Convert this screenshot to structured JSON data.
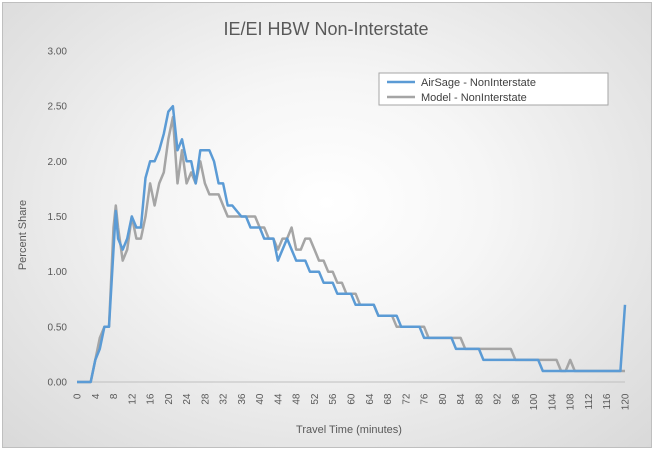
{
  "chart_data": {
    "type": "line",
    "title": "IE/EI HBW Non-Interstate",
    "xlabel": "Travel Time (minutes)",
    "ylabel": "Percent Share",
    "xlim": [
      0,
      120
    ],
    "ylim": [
      0,
      3.0
    ],
    "x_ticks": [
      "0",
      "4",
      "8",
      "12",
      "16",
      "20",
      "24",
      "28",
      "32",
      "36",
      "40",
      "44",
      "48",
      "52",
      "56",
      "60",
      "64",
      "68",
      "72",
      "76",
      "80",
      "84",
      "88",
      "92",
      "96",
      "100",
      "104",
      "108",
      "112",
      "116",
      "120"
    ],
    "y_ticks": [
      "0.00",
      "0.50",
      "1.00",
      "1.50",
      "2.00",
      "2.50",
      "3.00"
    ],
    "grid": false,
    "legend_position": "top-right",
    "series": [
      {
        "name": "AirSage - NonInterstate",
        "color": "#5b9bd5",
        "points": [
          [
            0,
            0
          ],
          [
            1,
            0
          ],
          [
            2,
            0
          ],
          [
            3,
            0
          ],
          [
            4,
            0.2
          ],
          [
            5,
            0.3
          ],
          [
            6,
            0.5
          ],
          [
            7,
            0.5
          ],
          [
            8,
            1.2
          ],
          [
            8.5,
            1.55
          ],
          [
            9,
            1.3
          ],
          [
            10,
            1.2
          ],
          [
            11,
            1.3
          ],
          [
            12,
            1.5
          ],
          [
            13,
            1.4
          ],
          [
            14,
            1.4
          ],
          [
            15,
            1.85
          ],
          [
            16,
            2.0
          ],
          [
            17,
            2.0
          ],
          [
            18,
            2.1
          ],
          [
            19,
            2.25
          ],
          [
            20,
            2.45
          ],
          [
            21,
            2.5
          ],
          [
            22,
            2.1
          ],
          [
            23,
            2.2
          ],
          [
            24,
            2.0
          ],
          [
            25,
            2.0
          ],
          [
            26,
            1.8
          ],
          [
            27,
            2.1
          ],
          [
            28,
            2.1
          ],
          [
            29,
            2.1
          ],
          [
            30,
            2.0
          ],
          [
            31,
            1.8
          ],
          [
            32,
            1.8
          ],
          [
            33,
            1.6
          ],
          [
            34,
            1.6
          ],
          [
            35,
            1.55
          ],
          [
            36,
            1.5
          ],
          [
            37,
            1.5
          ],
          [
            38,
            1.4
          ],
          [
            39,
            1.4
          ],
          [
            40,
            1.4
          ],
          [
            41,
            1.3
          ],
          [
            42,
            1.3
          ],
          [
            43,
            1.3
          ],
          [
            44,
            1.1
          ],
          [
            45,
            1.2
          ],
          [
            46,
            1.3
          ],
          [
            47,
            1.2
          ],
          [
            48,
            1.1
          ],
          [
            49,
            1.1
          ],
          [
            50,
            1.1
          ],
          [
            51,
            1.0
          ],
          [
            52,
            1.0
          ],
          [
            53,
            1.0
          ],
          [
            54,
            0.9
          ],
          [
            55,
            0.9
          ],
          [
            56,
            0.9
          ],
          [
            57,
            0.8
          ],
          [
            58,
            0.8
          ],
          [
            59,
            0.8
          ],
          [
            60,
            0.8
          ],
          [
            61,
            0.7
          ],
          [
            62,
            0.7
          ],
          [
            63,
            0.7
          ],
          [
            64,
            0.7
          ],
          [
            65,
            0.7
          ],
          [
            66,
            0.6
          ],
          [
            67,
            0.6
          ],
          [
            68,
            0.6
          ],
          [
            69,
            0.6
          ],
          [
            70,
            0.6
          ],
          [
            71,
            0.5
          ],
          [
            72,
            0.5
          ],
          [
            73,
            0.5
          ],
          [
            74,
            0.5
          ],
          [
            75,
            0.5
          ],
          [
            76,
            0.4
          ],
          [
            77,
            0.4
          ],
          [
            78,
            0.4
          ],
          [
            79,
            0.4
          ],
          [
            80,
            0.4
          ],
          [
            81,
            0.4
          ],
          [
            82,
            0.4
          ],
          [
            83,
            0.3
          ],
          [
            84,
            0.3
          ],
          [
            85,
            0.3
          ],
          [
            86,
            0.3
          ],
          [
            87,
            0.3
          ],
          [
            88,
            0.3
          ],
          [
            89,
            0.2
          ],
          [
            90,
            0.2
          ],
          [
            91,
            0.2
          ],
          [
            92,
            0.2
          ],
          [
            93,
            0.2
          ],
          [
            94,
            0.2
          ],
          [
            95,
            0.2
          ],
          [
            96,
            0.2
          ],
          [
            97,
            0.2
          ],
          [
            98,
            0.2
          ],
          [
            99,
            0.2
          ],
          [
            100,
            0.2
          ],
          [
            101,
            0.2
          ],
          [
            102,
            0.1
          ],
          [
            103,
            0.1
          ],
          [
            104,
            0.1
          ],
          [
            105,
            0.1
          ],
          [
            106,
            0.1
          ],
          [
            107,
            0.1
          ],
          [
            108,
            0.1
          ],
          [
            109,
            0.1
          ],
          [
            110,
            0.1
          ],
          [
            111,
            0.1
          ],
          [
            112,
            0.1
          ],
          [
            113,
            0.1
          ],
          [
            114,
            0.1
          ],
          [
            115,
            0.1
          ],
          [
            116,
            0.1
          ],
          [
            117,
            0.1
          ],
          [
            118,
            0.1
          ],
          [
            119,
            0.1
          ],
          [
            120,
            0.7
          ]
        ]
      },
      {
        "name": "Model - NonInterstate",
        "color": "#a5a5a5",
        "points": [
          [
            0,
            0
          ],
          [
            1,
            0
          ],
          [
            2,
            0
          ],
          [
            3,
            0
          ],
          [
            4,
            0.2
          ],
          [
            5,
            0.4
          ],
          [
            6,
            0.5
          ],
          [
            7,
            0.5
          ],
          [
            8,
            1.4
          ],
          [
            8.5,
            1.6
          ],
          [
            9,
            1.4
          ],
          [
            10,
            1.1
          ],
          [
            11,
            1.2
          ],
          [
            12,
            1.5
          ],
          [
            13,
            1.3
          ],
          [
            14,
            1.3
          ],
          [
            15,
            1.5
          ],
          [
            16,
            1.8
          ],
          [
            17,
            1.6
          ],
          [
            18,
            1.8
          ],
          [
            19,
            1.9
          ],
          [
            20,
            2.2
          ],
          [
            21,
            2.4
          ],
          [
            22,
            1.8
          ],
          [
            23,
            2.1
          ],
          [
            24,
            1.8
          ],
          [
            25,
            1.9
          ],
          [
            26,
            1.8
          ],
          [
            27,
            2.0
          ],
          [
            28,
            1.8
          ],
          [
            29,
            1.7
          ],
          [
            30,
            1.7
          ],
          [
            31,
            1.7
          ],
          [
            32,
            1.6
          ],
          [
            33,
            1.5
          ],
          [
            34,
            1.5
          ],
          [
            35,
            1.5
          ],
          [
            36,
            1.5
          ],
          [
            37,
            1.5
          ],
          [
            38,
            1.5
          ],
          [
            39,
            1.5
          ],
          [
            40,
            1.4
          ],
          [
            41,
            1.4
          ],
          [
            42,
            1.3
          ],
          [
            43,
            1.3
          ],
          [
            44,
            1.2
          ],
          [
            45,
            1.3
          ],
          [
            46,
            1.3
          ],
          [
            47,
            1.4
          ],
          [
            48,
            1.2
          ],
          [
            49,
            1.2
          ],
          [
            50,
            1.3
          ],
          [
            51,
            1.3
          ],
          [
            52,
            1.2
          ],
          [
            53,
            1.1
          ],
          [
            54,
            1.1
          ],
          [
            55,
            1.0
          ],
          [
            56,
            1.0
          ],
          [
            57,
            0.9
          ],
          [
            58,
            0.9
          ],
          [
            59,
            0.8
          ],
          [
            60,
            0.8
          ],
          [
            61,
            0.8
          ],
          [
            62,
            0.7
          ],
          [
            63,
            0.7
          ],
          [
            64,
            0.7
          ],
          [
            65,
            0.7
          ],
          [
            66,
            0.6
          ],
          [
            67,
            0.6
          ],
          [
            68,
            0.6
          ],
          [
            69,
            0.6
          ],
          [
            70,
            0.5
          ],
          [
            71,
            0.5
          ],
          [
            72,
            0.5
          ],
          [
            73,
            0.5
          ],
          [
            74,
            0.5
          ],
          [
            75,
            0.5
          ],
          [
            76,
            0.5
          ],
          [
            77,
            0.4
          ],
          [
            78,
            0.4
          ],
          [
            79,
            0.4
          ],
          [
            80,
            0.4
          ],
          [
            81,
            0.4
          ],
          [
            82,
            0.4
          ],
          [
            83,
            0.4
          ],
          [
            84,
            0.4
          ],
          [
            85,
            0.3
          ],
          [
            86,
            0.3
          ],
          [
            87,
            0.3
          ],
          [
            88,
            0.3
          ],
          [
            89,
            0.3
          ],
          [
            90,
            0.3
          ],
          [
            91,
            0.3
          ],
          [
            92,
            0.3
          ],
          [
            93,
            0.3
          ],
          [
            94,
            0.3
          ],
          [
            95,
            0.3
          ],
          [
            96,
            0.2
          ],
          [
            97,
            0.2
          ],
          [
            98,
            0.2
          ],
          [
            99,
            0.2
          ],
          [
            100,
            0.2
          ],
          [
            101,
            0.2
          ],
          [
            102,
            0.2
          ],
          [
            103,
            0.2
          ],
          [
            104,
            0.2
          ],
          [
            105,
            0.2
          ],
          [
            106,
            0.1
          ],
          [
            107,
            0.1
          ],
          [
            108,
            0.2
          ],
          [
            109,
            0.1
          ],
          [
            110,
            0.1
          ],
          [
            111,
            0.1
          ],
          [
            112,
            0.1
          ],
          [
            113,
            0.1
          ],
          [
            114,
            0.1
          ],
          [
            115,
            0.1
          ],
          [
            116,
            0.1
          ],
          [
            117,
            0.1
          ],
          [
            118,
            0.1
          ],
          [
            119,
            0.1
          ],
          [
            120,
            0.1
          ]
        ]
      }
    ]
  }
}
